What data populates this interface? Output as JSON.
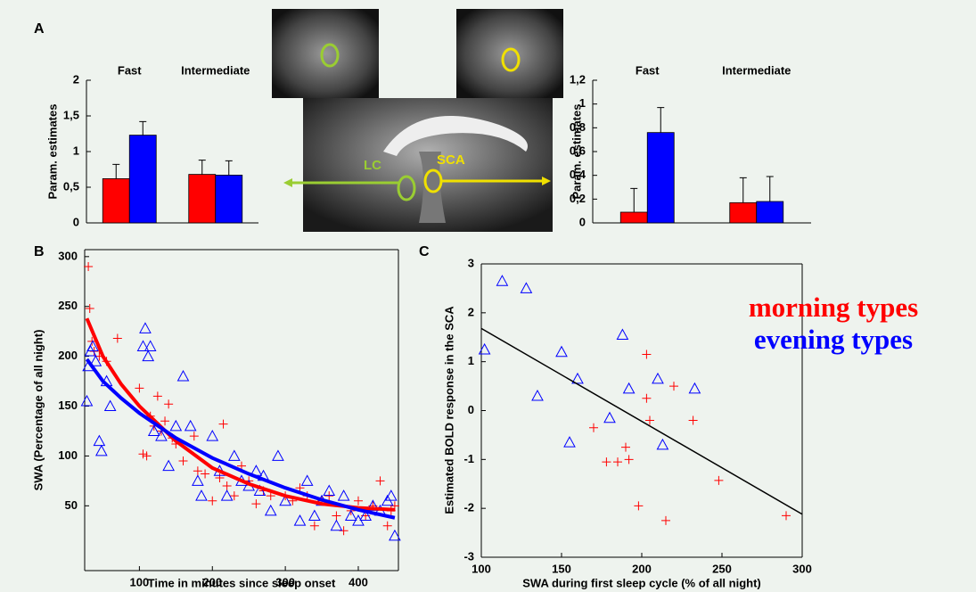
{
  "brain_labels": [
    "LC",
    "SCA"
  ],
  "chart_data": [
    {
      "type": "bar",
      "panel": "A",
      "ylabel": "Param. estimates",
      "categories": [
        "Fast",
        "Intermediate"
      ],
      "series": [
        {
          "color": "#ff0000",
          "values": [
            0.62,
            0.68
          ],
          "errors": [
            0.2,
            0.2
          ]
        },
        {
          "color": "#0000ff",
          "values": [
            1.23,
            0.67
          ],
          "errors": [
            0.19,
            0.2
          ]
        }
      ],
      "ylim": [
        0,
        2
      ],
      "yticks": [
        0,
        {
          "value": 0.5,
          "label": "0,5"
        },
        1,
        {
          "value": 1.5,
          "label": "1,5"
        },
        2
      ]
    },
    {
      "type": "bar",
      "ylabel": "Param. estimates",
      "categories": [
        "Fast",
        "Intermediate"
      ],
      "series": [
        {
          "color": "#ff0000",
          "values": [
            0.09,
            0.17
          ],
          "errors": [
            0.2,
            0.21
          ]
        },
        {
          "color": "#0000ff",
          "values": [
            0.76,
            0.18
          ],
          "errors": [
            0.21,
            0.21
          ]
        }
      ],
      "ylim": [
        0,
        1.2
      ],
      "yticks": [
        0,
        {
          "value": 0.2,
          "label": "0,2"
        },
        {
          "value": 0.4,
          "label": "0,4"
        },
        {
          "value": 0.6,
          "label": "0,6"
        },
        {
          "value": 0.8,
          "label": "0,8"
        },
        1,
        {
          "value": 1.2,
          "label": "1,2"
        }
      ]
    },
    {
      "type": "scatter",
      "panel": "B",
      "xlabel": "Time in minutes since sleep onset",
      "ylabel": "SWA (Percentage of all night)",
      "xlim": [
        25,
        455
      ],
      "ylim": [
        -15,
        307
      ],
      "xticks": [
        100,
        200,
        300,
        400
      ],
      "yticks": [
        50,
        100,
        150,
        200,
        250,
        300
      ],
      "series": [
        {
          "color": "#ff0000",
          "marker": "+",
          "x": [
            30,
            32,
            35,
            38,
            45,
            55,
            70,
            100,
            105,
            110,
            115,
            120,
            125,
            130,
            135,
            140,
            145,
            150,
            160,
            175,
            180,
            190,
            200,
            210,
            215,
            220,
            230,
            240,
            250,
            260,
            270,
            280,
            300,
            310,
            320,
            330,
            340,
            350,
            360,
            370,
            380,
            390,
            400,
            410,
            420,
            430,
            440,
            445,
            450
          ],
          "values": [
            290,
            248,
            215,
            205,
            200,
            195,
            218,
            168,
            102,
            100,
            140,
            130,
            160,
            125,
            135,
            152,
            118,
            112,
            95,
            120,
            85,
            82,
            55,
            78,
            132,
            70,
            60,
            90,
            75,
            52,
            65,
            60,
            60,
            55,
            68,
            60,
            30,
            55,
            60,
            40,
            25,
            45,
            55,
            40,
            50,
            75,
            30,
            45,
            50
          ]
        },
        {
          "color": "#0000ff",
          "marker": "triangle",
          "x": [
            28,
            30,
            33,
            36,
            40,
            45,
            48,
            55,
            60,
            105,
            108,
            112,
            115,
            120,
            130,
            140,
            150,
            160,
            170,
            180,
            185,
            200,
            210,
            220,
            230,
            240,
            250,
            260,
            265,
            270,
            280,
            290,
            300,
            320,
            330,
            340,
            350,
            360,
            370,
            380,
            390,
            400,
            410,
            420,
            430,
            440,
            445,
            450
          ],
          "values": [
            155,
            190,
            205,
            210,
            195,
            115,
            105,
            175,
            150,
            210,
            228,
            200,
            210,
            125,
            120,
            90,
            130,
            180,
            130,
            75,
            60,
            120,
            85,
            60,
            100,
            75,
            70,
            85,
            65,
            80,
            45,
            100,
            55,
            35,
            75,
            40,
            55,
            65,
            30,
            60,
            40,
            35,
            40,
            50,
            45,
            55,
            60,
            20
          ]
        },
        {
          "color": "#ff0000",
          "marker": "line",
          "x": [
            28,
            50,
            75,
            100,
            150,
            200,
            250,
            300,
            350,
            400,
            450
          ],
          "values": [
            238,
            200,
            172,
            150,
            115,
            88,
            72,
            60,
            52,
            48,
            46
          ]
        },
        {
          "color": "#0000ff",
          "marker": "line",
          "x": [
            28,
            50,
            75,
            100,
            150,
            200,
            250,
            300,
            350,
            400,
            450
          ],
          "values": [
            197,
            175,
            158,
            143,
            118,
            98,
            82,
            68,
            56,
            46,
            38
          ]
        }
      ]
    },
    {
      "type": "scatter",
      "panel": "C",
      "xlabel": "SWA during first sleep cycle (% of all night)",
      "ylabel": "Estimated BOLD response in the SCA",
      "xlim": [
        100,
        300
      ],
      "ylim": [
        -3,
        3
      ],
      "xticks": [
        100,
        150,
        200,
        250,
        300
      ],
      "yticks": [
        -3,
        -2,
        -1,
        0,
        1,
        2,
        3
      ],
      "legend": "right",
      "series": [
        {
          "name": "morning types",
          "color": "#ff0000",
          "marker": "+",
          "x": [
            170,
            178,
            185,
            190,
            192,
            198,
            203,
            203,
            205,
            215,
            220,
            232,
            248,
            290
          ],
          "values": [
            -0.35,
            -1.05,
            -1.05,
            -0.75,
            -1.0,
            -1.95,
            1.15,
            0.25,
            -0.2,
            -2.25,
            0.5,
            -0.2,
            -1.43,
            -2.15
          ]
        },
        {
          "name": "evening types",
          "color": "#0000ff",
          "marker": "triangle",
          "x": [
            102,
            113,
            128,
            135,
            150,
            155,
            160,
            180,
            188,
            192,
            210,
            213,
            233
          ],
          "values": [
            1.25,
            2.65,
            2.5,
            0.3,
            1.2,
            -0.65,
            0.65,
            -0.15,
            1.55,
            0.45,
            0.65,
            -0.7,
            0.45
          ]
        },
        {
          "color": "#000000",
          "marker": "line",
          "x": [
            100,
            300
          ],
          "values": [
            1.68,
            -2.12
          ]
        }
      ]
    }
  ]
}
